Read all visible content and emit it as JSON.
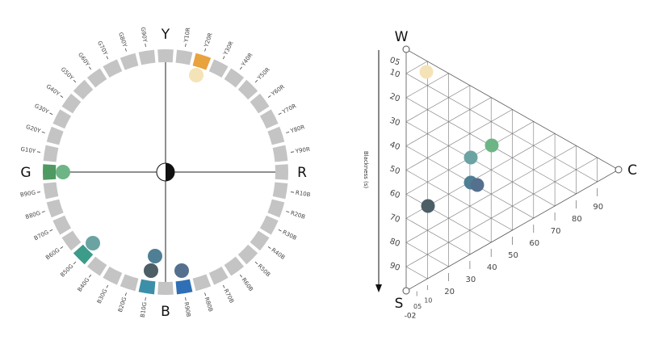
{
  "color_circle": {
    "axis_labels": {
      "top": "Y",
      "right": "R",
      "bottom": "B",
      "left": "G"
    },
    "hue_labels": [
      "Y10R",
      "Y20R",
      "Y30R",
      "Y40R",
      "Y50R",
      "Y60R",
      "Y70R",
      "Y80R",
      "Y90R",
      "R10B",
      "R20B",
      "R30B",
      "R40B",
      "R50B",
      "R60B",
      "R70B",
      "R80B",
      "R90B",
      "B10G",
      "B20G",
      "B30G",
      "B40G",
      "B50G",
      "B60G",
      "B70G",
      "B80G",
      "B90G",
      "G10Y",
      "G20Y",
      "G30Y",
      "G40Y",
      "G50Y",
      "G60Y",
      "G70Y",
      "G80Y",
      "G90Y"
    ]
  },
  "triangle": {
    "corner_labels": {
      "w": "W",
      "s": "S",
      "c": "C"
    },
    "axis_title": "Blackness (s)",
    "blackness_labels": [
      "05",
      "10",
      "20",
      "30",
      "40",
      "50",
      "60",
      "70",
      "80",
      "90"
    ],
    "chromaticness_labels": [
      "05",
      "10",
      "20",
      "30",
      "40",
      "50",
      "60",
      "70",
      "80",
      "90"
    ],
    "stray_label": "-02"
  }
}
